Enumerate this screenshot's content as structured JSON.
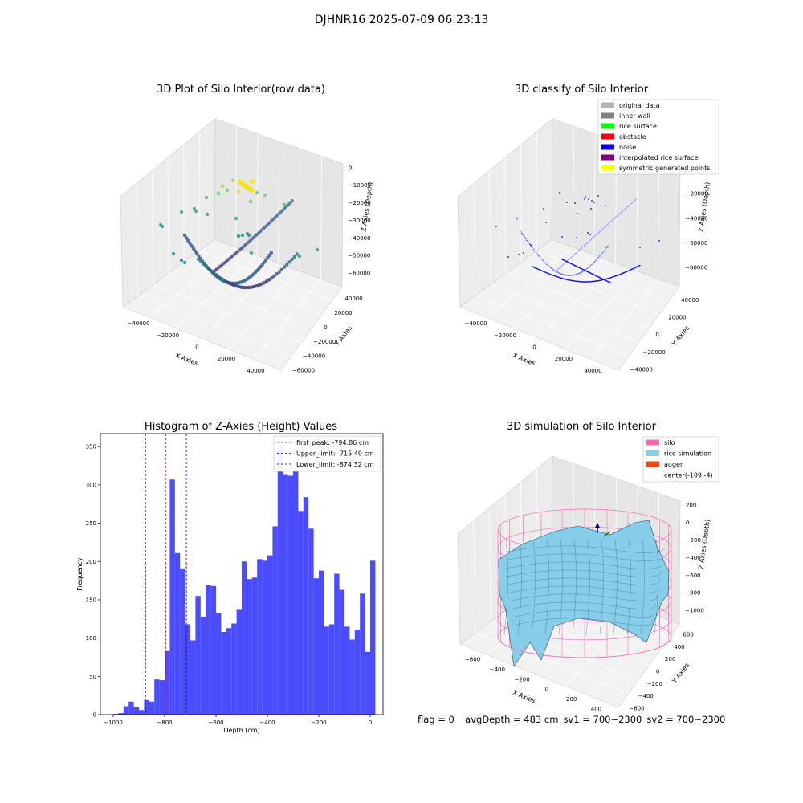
{
  "suptitle": "DJHNR16 2025-07-09 06:23:13",
  "footer": {
    "flag": "flag = 0",
    "avg": "avgDepth = 483 cm",
    "sv1": "sv1 = 700~2300",
    "sv2": "sv2 = 700~2300"
  },
  "chart_data": [
    {
      "type": "scatter",
      "projection": "3d",
      "title": "3D Plot of Silo Interior(row data)",
      "xlabel": "X Axies",
      "ylabel": "Y Axies",
      "zlabel": "Z Axies (Depth)",
      "xticks": [
        "−40000",
        "−20000",
        "0",
        "20000",
        "40000"
      ],
      "yticks": [
        "−60000",
        "−40000",
        "−20000",
        "0",
        "20000",
        "40000"
      ],
      "zticks": [
        "0",
        "−10000",
        "−20000",
        "−30000",
        "−40000",
        "−50000",
        "−60000"
      ],
      "colormap": "viridis"
    },
    {
      "type": "scatter",
      "projection": "3d",
      "title": "3D classify of Silo Interior",
      "xlabel": "X Axies",
      "ylabel": "Y Axies",
      "zlabel": "Z Axies (Depth)",
      "xticks": [
        "−40000",
        "−20000",
        "0",
        "20000",
        "40000"
      ],
      "yticks": [
        "−40000",
        "−20000",
        "0",
        "20000",
        "40000"
      ],
      "zticks": [
        "0",
        "−20000",
        "−40000",
        "−60000",
        "−80000"
      ],
      "legend_position": "top-right",
      "legend": [
        {
          "label": "original data",
          "color": "#b3b3b3"
        },
        {
          "label": "inner wall",
          "color": "#808080"
        },
        {
          "label": "rice surface",
          "color": "#00ff00"
        },
        {
          "label": "obstacle",
          "color": "#ff0000"
        },
        {
          "label": "noise",
          "color": "#0000ff"
        },
        {
          "label": "interpolated rice surface",
          "color": "#800080"
        },
        {
          "label": "symmetric generated points",
          "color": "#ffff00"
        }
      ]
    },
    {
      "type": "bar",
      "title": "Histogram of Z-Axies (Height) Values",
      "xlabel": "Depth (cm)",
      "ylabel": "Frequency",
      "xlim": [
        -1050,
        50
      ],
      "ylim": [
        0,
        367
      ],
      "xticks": [
        -1000,
        -800,
        -600,
        -400,
        -200,
        0
      ],
      "xtick_labels": [
        "−1000",
        "−800",
        "−600",
        "−400",
        "−200",
        "0"
      ],
      "yticks": [
        0,
        50,
        100,
        150,
        200,
        250,
        300,
        350
      ],
      "bin_start": -1000,
      "bin_width": 20,
      "bar_color": "#4c4cff",
      "values": [
        1,
        2,
        11,
        17,
        10,
        6,
        19,
        17,
        46,
        45,
        83,
        307,
        211,
        191,
        118,
        97,
        155,
        128,
        169,
        168,
        133,
        108,
        113,
        119,
        137,
        200,
        177,
        179,
        203,
        201,
        208,
        246,
        351,
        314,
        312,
        322,
        266,
        284,
        243,
        178,
        188,
        115,
        118,
        184,
        163,
        115,
        98,
        111,
        158,
        82,
        201
      ],
      "lines": [
        {
          "label": "first_peak: -794.86 cm",
          "x": -794.86,
          "color": "#ff0000"
        },
        {
          "label": "Upper_limit: -715.40 cm",
          "x": -715.4,
          "color": "#0000aa"
        },
        {
          "label": "Lower_limit: -874.32 cm",
          "x": -874.32,
          "color": "#0000aa"
        }
      ],
      "legend_position": "top-right"
    },
    {
      "type": "surface",
      "projection": "3d",
      "title": "3D simulation of Silo Interior",
      "xlabel": "X Axies",
      "ylabel": "Y Axies",
      "zlabel": "Z Axies (Depth)",
      "xticks": [
        "−600",
        "−400",
        "−200",
        "0",
        "200",
        "400"
      ],
      "yticks": [
        "−600",
        "−400",
        "−200",
        "0",
        "200",
        "400",
        "600"
      ],
      "zticks": [
        "200",
        "0",
        "−200",
        "−400",
        "−600",
        "−800",
        "−1000"
      ],
      "legend_position": "top-right",
      "legend": [
        {
          "label": "silo",
          "color": "#ff69b4"
        },
        {
          "label": "rice simulation",
          "color": "#87ceeb"
        },
        {
          "label": "auger",
          "color": "#ff4500"
        },
        {
          "label": "center(-109,-4)",
          "color": ""
        }
      ]
    }
  ]
}
